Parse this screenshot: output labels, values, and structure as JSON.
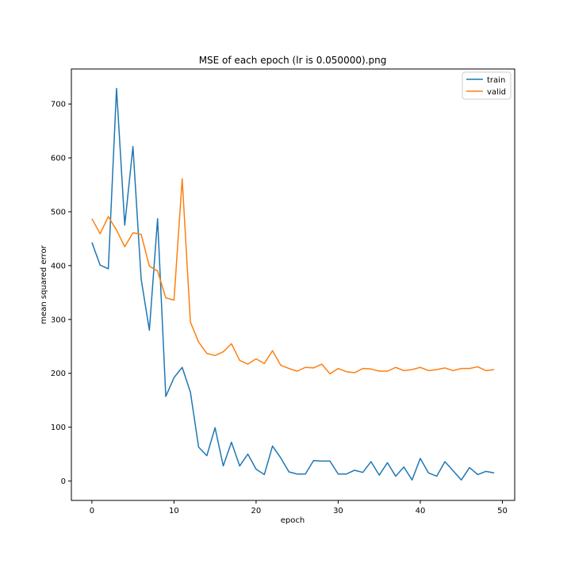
{
  "chart_data": {
    "type": "line",
    "title": "MSE of each epoch (lr is 0.050000).png",
    "xlabel": "epoch",
    "ylabel": "mean squared error",
    "xlim": [
      -2.5,
      51.5
    ],
    "ylim": [
      -36,
      765
    ],
    "xticks": [
      0,
      10,
      20,
      30,
      40,
      50
    ],
    "yticks": [
      0,
      100,
      200,
      300,
      400,
      500,
      600,
      700
    ],
    "grid": false,
    "legend_position": "upper right",
    "x": [
      0,
      1,
      2,
      3,
      4,
      5,
      6,
      7,
      8,
      9,
      10,
      11,
      12,
      13,
      14,
      15,
      16,
      17,
      18,
      19,
      20,
      21,
      22,
      23,
      24,
      25,
      26,
      27,
      28,
      29,
      30,
      31,
      32,
      33,
      34,
      35,
      36,
      37,
      38,
      39,
      40,
      41,
      42,
      43,
      44,
      45,
      46,
      47,
      48,
      49
    ],
    "series": [
      {
        "name": "train",
        "color": "#1f77b4",
        "values": [
          443,
          401,
          394,
          729,
          475,
          621,
          375,
          280,
          487,
          157,
          192,
          211,
          165,
          63,
          47,
          99,
          28,
          72,
          28,
          50,
          22,
          12,
          65,
          43,
          17,
          13,
          13,
          38,
          37,
          37,
          13,
          13,
          20,
          16,
          36,
          11,
          34,
          9,
          26,
          2,
          42,
          15,
          9,
          36,
          19,
          2,
          25,
          12,
          18,
          15
        ]
      },
      {
        "name": "valid",
        "color": "#ff7f0e",
        "values": [
          487,
          459,
          491,
          466,
          435,
          461,
          458,
          399,
          390,
          340,
          336,
          561,
          295,
          258,
          237,
          233,
          240,
          255,
          224,
          217,
          227,
          218,
          242,
          215,
          209,
          204,
          211,
          210,
          217,
          199,
          209,
          203,
          201,
          209,
          208,
          204,
          204,
          211,
          205,
          207,
          211,
          205,
          207,
          210,
          205,
          209,
          209,
          212,
          205,
          207
        ]
      }
    ]
  }
}
